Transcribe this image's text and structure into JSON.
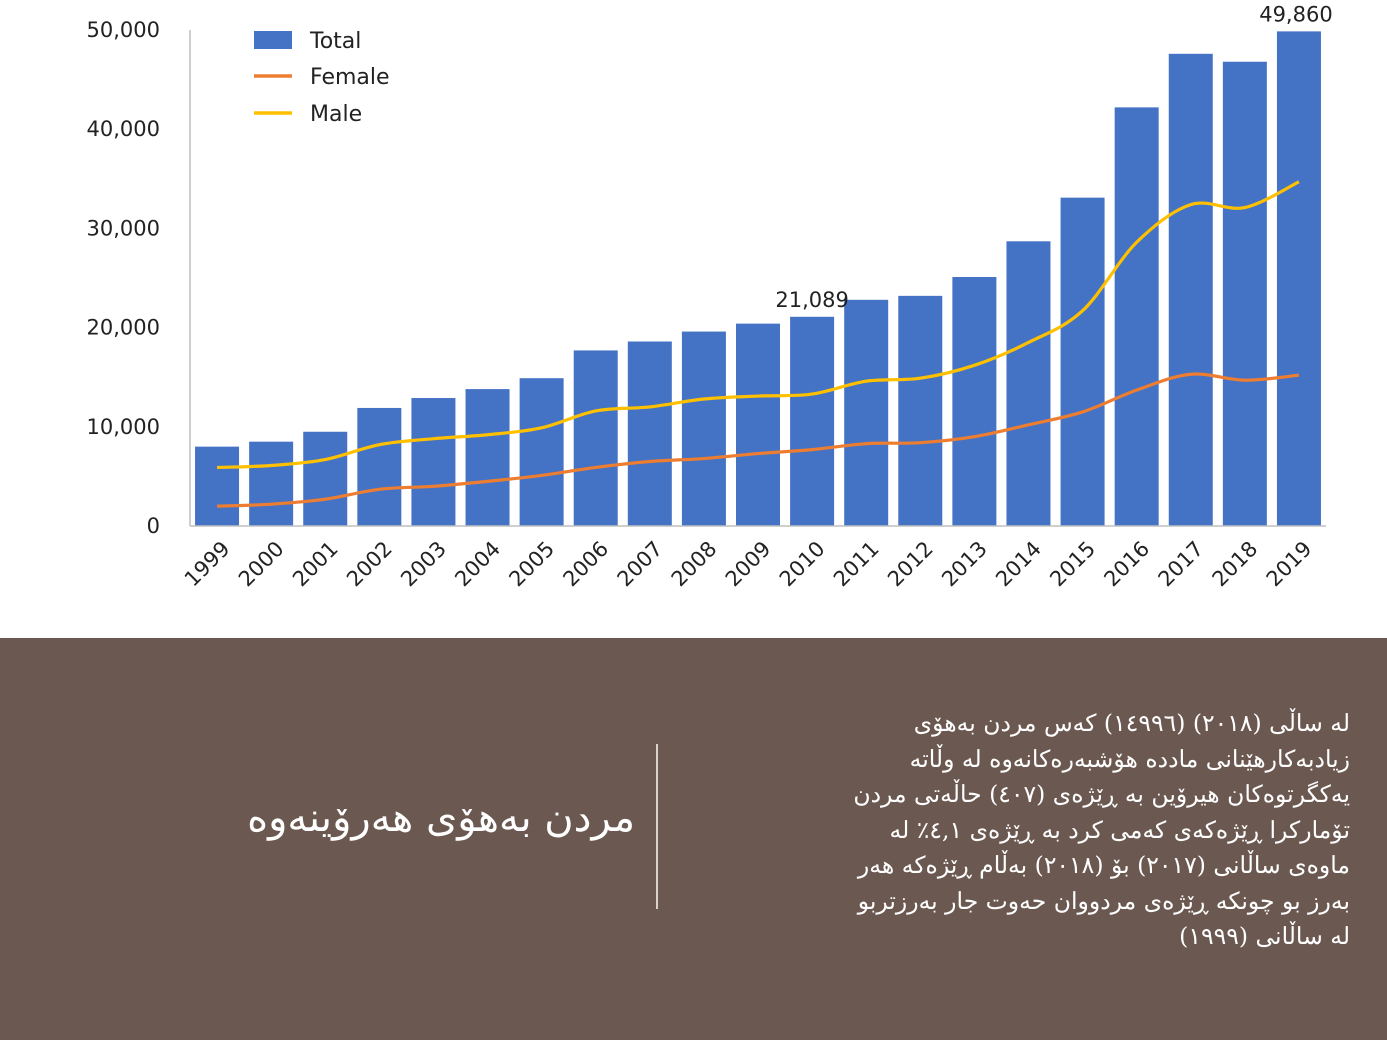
{
  "chart_data": {
    "type": "bar",
    "title": "",
    "xlabel": "",
    "ylabel": "",
    "ylim": [
      0,
      50000
    ],
    "y_ticks": [
      "0",
      "10,000",
      "20,000",
      "30,000",
      "40,000",
      "50,000"
    ],
    "y_tick_values": [
      0,
      10000,
      20000,
      30000,
      40000,
      50000
    ],
    "categories": [
      "1999",
      "2000",
      "2001",
      "2002",
      "2003",
      "2004",
      "2005",
      "2006",
      "2007",
      "2008",
      "2009",
      "2010",
      "2011",
      "2012",
      "2013",
      "2014",
      "2015",
      "2016",
      "2017",
      "2018",
      "2019"
    ],
    "series": [
      {
        "name": "Total",
        "kind": "bar",
        "color": "#4472c4",
        "values": [
          8000,
          8500,
          9500,
          11900,
          12900,
          13800,
          14900,
          17700,
          18600,
          19600,
          20400,
          21089,
          22800,
          23200,
          25100,
          28700,
          33100,
          42200,
          47600,
          46800,
          49860
        ]
      },
      {
        "name": "Female",
        "kind": "line",
        "color": "#ed7d31",
        "values": [
          2000,
          2200,
          2700,
          3700,
          4000,
          4500,
          5100,
          5900,
          6500,
          6800,
          7300,
          7700,
          8300,
          8400,
          9000,
          10200,
          11500,
          13700,
          15300,
          14700,
          15200
        ]
      },
      {
        "name": "Male",
        "kind": "line",
        "color": "#ffc000",
        "values": [
          5900,
          6100,
          6700,
          8200,
          8800,
          9200,
          9900,
          11600,
          12000,
          12800,
          13100,
          13300,
          14600,
          14900,
          16200,
          18500,
          21700,
          28600,
          32400,
          32100,
          34700
        ]
      }
    ],
    "annotations": [
      {
        "category": "2010",
        "label": "21,089"
      },
      {
        "category": "2019",
        "label": "49,860"
      }
    ],
    "legend_position": "top-left",
    "grid": false
  },
  "footer": {
    "title": "مردن بەهۆی هەرۆینەوە",
    "body_lines": [
      "لە ساڵی (٢٠١٨) (١٤٩٩٦) کەس مردن بەهۆی",
      "زیادبەکارهێنانی مادده هۆشبەرەکانەوە لە وڵاتە",
      "یەکگرتوەکان  هیرۆین بە ڕێژەی (٤٠٧) حاڵەتی مردن",
      "تۆمارکرا ڕێژەکەی کەمی کرد بە ڕێژەی ٤,١٪ لە",
      "ماوەی ساڵانی (٢٠١٧) بۆ (٢٠١٨) بەڵام ڕێژەکە هەر",
      "بەرز بو چونکە ڕێژەی مردووان حەوت جار بەرزتربو",
      "لە ساڵانی (١٩٩٩)"
    ],
    "background": "#6b5951"
  }
}
